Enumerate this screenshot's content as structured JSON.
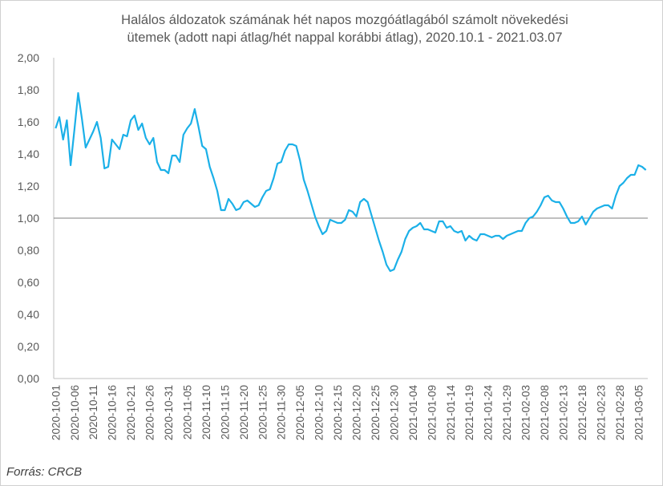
{
  "chart_data": {
    "type": "line",
    "title_line1": "Halálos áldozatok számának hét napos mozgóátlagából számolt növekedési",
    "title_line2": "ütemek (adott napi átlag/hét nappal korábbi átlag), 2020.10.1 - 2021.03.07",
    "source": "Forrás: CRCB",
    "ylim": [
      0,
      2
    ],
    "yticks": [
      "0,00",
      "0,20",
      "0,40",
      "0,60",
      "0,80",
      "1,00",
      "1,20",
      "1,40",
      "1,60",
      "1,80",
      "2,00"
    ],
    "reference_line": 1.0,
    "xtick_labels": [
      "2020-10-01",
      "2020-10-06",
      "2020-10-11",
      "2020-10-16",
      "2020-10-21",
      "2020-10-26",
      "2020-10-31",
      "2020-11-05",
      "2020-11-10",
      "2020-11-15",
      "2020-11-20",
      "2020-11-25",
      "2020-11-30",
      "2020-12-05",
      "2020-12-10",
      "2020-12-15",
      "2020-12-20",
      "2020-12-25",
      "2020-12-30",
      "2021-01-04",
      "2021-01-09",
      "2021-01-14",
      "2021-01-19",
      "2021-01-24",
      "2021-01-29",
      "2021-02-03",
      "2021-02-08",
      "2021-02-13",
      "2021-02-18",
      "2021-02-23",
      "2021-02-28",
      "2021-03-05"
    ],
    "start_date": "2020-10-01",
    "values": [
      1.56,
      1.63,
      1.49,
      1.61,
      1.33,
      1.55,
      1.78,
      1.62,
      1.44,
      1.49,
      1.54,
      1.6,
      1.5,
      1.31,
      1.32,
      1.49,
      1.46,
      1.43,
      1.52,
      1.51,
      1.61,
      1.64,
      1.55,
      1.59,
      1.5,
      1.46,
      1.5,
      1.35,
      1.3,
      1.3,
      1.28,
      1.39,
      1.39,
      1.35,
      1.52,
      1.56,
      1.59,
      1.68,
      1.57,
      1.45,
      1.43,
      1.32,
      1.25,
      1.17,
      1.05,
      1.05,
      1.12,
      1.09,
      1.05,
      1.06,
      1.1,
      1.11,
      1.09,
      1.07,
      1.08,
      1.13,
      1.17,
      1.18,
      1.25,
      1.34,
      1.35,
      1.42,
      1.46,
      1.46,
      1.45,
      1.36,
      1.24,
      1.17,
      1.09,
      1.01,
      0.95,
      0.9,
      0.92,
      0.99,
      0.98,
      0.97,
      0.97,
      0.99,
      1.05,
      1.04,
      1.01,
      1.1,
      1.12,
      1.1,
      1.02,
      0.94,
      0.86,
      0.79,
      0.71,
      0.67,
      0.68,
      0.74,
      0.79,
      0.87,
      0.92,
      0.94,
      0.95,
      0.97,
      0.93,
      0.93,
      0.92,
      0.91,
      0.98,
      0.98,
      0.94,
      0.95,
      0.92,
      0.91,
      0.92,
      0.86,
      0.89,
      0.87,
      0.86,
      0.9,
      0.9,
      0.89,
      0.88,
      0.89,
      0.89,
      0.87,
      0.89,
      0.9,
      0.91,
      0.92,
      0.92,
      0.97,
      1.0,
      1.01,
      1.04,
      1.08,
      1.13,
      1.14,
      1.11,
      1.1,
      1.1,
      1.06,
      1.01,
      0.97,
      0.97,
      0.98,
      1.01,
      0.96,
      1.0,
      1.04,
      1.06,
      1.07,
      1.08,
      1.08,
      1.06,
      1.14,
      1.2,
      1.22,
      1.25,
      1.27,
      1.27,
      1.33,
      1.32,
      1.3
    ],
    "series_color": "#1BB0E8",
    "grid": false,
    "legend": "none"
  }
}
